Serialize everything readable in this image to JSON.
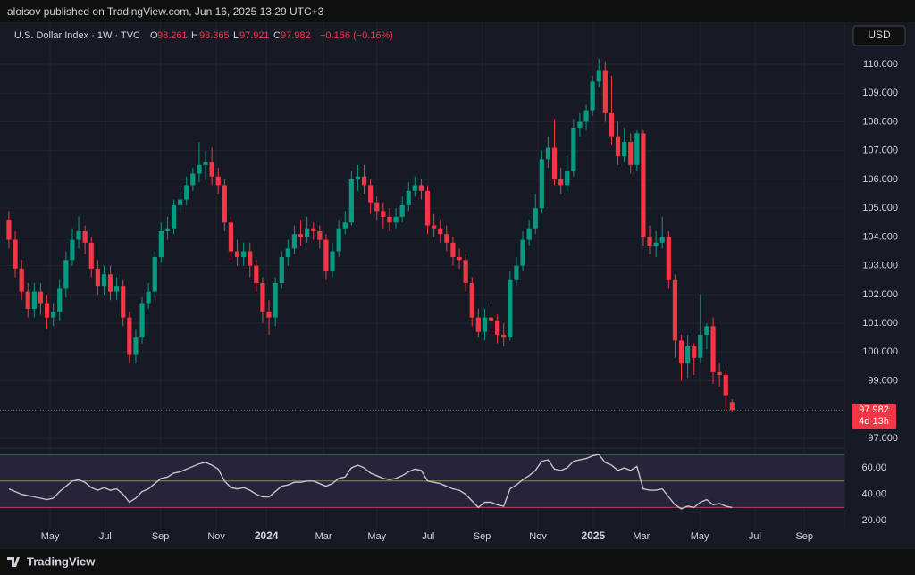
{
  "header": {
    "publisher": "aloisov published on TradingView.com, Jun 16, 2025 13:29 UTC+3",
    "symbol": "U.S. Dollar Index · 1W · TVC",
    "open_label": "O",
    "open": "98.261",
    "high_label": "H",
    "high": "98.365",
    "low_label": "L",
    "low": "97.921",
    "close_label": "C",
    "close": "97.982",
    "change": "−0.156 (−0.16%)",
    "currency": "USD",
    "countdown": "4d 13h"
  },
  "footer": {
    "brand": "TradingView"
  },
  "chart_data": [
    {
      "type": "candlestick",
      "up_color": "#089981",
      "down_color": "#f23645",
      "series": {
        "open": [
          104.6,
          103.9,
          102.9,
          102.1,
          101.5,
          102.1,
          101.7,
          101.2,
          101.4,
          102.2,
          103.2,
          103.9,
          104.2,
          103.8,
          102.9,
          102.3,
          102.7,
          102.1,
          102.3,
          101.2,
          99.9,
          100.5,
          101.7,
          102.1,
          103.3,
          104.2,
          104.3,
          105.1,
          105.3,
          105.8,
          106.2,
          106.5,
          106.6,
          106.1,
          105.8,
          104.5,
          103.5,
          103.3,
          103.5,
          103.0,
          102.4,
          101.4,
          101.2,
          102.4,
          103.3,
          103.6,
          104.1,
          104.0,
          104.3,
          104.2,
          103.9,
          102.8,
          103.5,
          104.3,
          104.5,
          106.0,
          106.1,
          105.8,
          105.2,
          104.9,
          104.7,
          104.5,
          104.7,
          105.1,
          105.6,
          105.8,
          105.6,
          104.4,
          104.3,
          104.1,
          103.8,
          103.3,
          103.2,
          102.4,
          101.2,
          100.7,
          101.2,
          101.1,
          100.6,
          100.5,
          102.5,
          103.0,
          103.9,
          104.3,
          105.0,
          106.7,
          107.1,
          106.0,
          105.8,
          106.3,
          107.8,
          108.0,
          108.4,
          109.4,
          109.8,
          108.3,
          107.5,
          106.8,
          107.3,
          106.5,
          107.6,
          104.0,
          103.7,
          103.8,
          104.0,
          102.5,
          100.4,
          99.6,
          100.2,
          99.8,
          100.6,
          100.9,
          99.3,
          99.2,
          98.261
        ],
        "high": [
          104.9,
          104.2,
          103.2,
          102.4,
          102.4,
          102.4,
          102.0,
          101.7,
          102.5,
          103.5,
          104.3,
          104.7,
          104.4,
          104.0,
          103.2,
          103.0,
          103.0,
          102.6,
          102.5,
          101.4,
          100.8,
          101.9,
          102.4,
          103.5,
          104.5,
          104.7,
          105.3,
          105.7,
          106.1,
          106.4,
          107.3,
          107.0,
          107.1,
          106.4,
          106.0,
          104.7,
          103.9,
          103.8,
          103.8,
          103.2,
          102.6,
          101.8,
          102.6,
          103.5,
          103.9,
          104.4,
          104.6,
          104.7,
          104.5,
          104.4,
          104.1,
          103.8,
          104.6,
          104.9,
          106.3,
          106.5,
          106.5,
          106.0,
          105.4,
          105.2,
          105.0,
          105.0,
          105.4,
          105.9,
          106.1,
          106.0,
          105.8,
          104.8,
          104.6,
          104.4,
          104.0,
          103.6,
          103.4,
          102.6,
          101.5,
          101.5,
          101.6,
          101.3,
          101.0,
          102.8,
          103.3,
          104.2,
          104.6,
          105.5,
          107.0,
          107.5,
          108.1,
          106.4,
          106.8,
          108.1,
          108.3,
          108.6,
          109.6,
          110.2,
          110.1,
          109.6,
          108.0,
          107.8,
          107.6,
          107.7,
          107.7,
          104.4,
          104.2,
          104.7,
          104.2,
          102.7,
          100.6,
          100.6,
          100.3,
          102.0,
          101.0,
          101.2,
          99.6,
          99.4,
          98.365
        ],
        "low": [
          103.6,
          102.6,
          101.8,
          101.2,
          101.2,
          101.3,
          100.8,
          100.9,
          101.1,
          101.9,
          103.0,
          103.6,
          103.4,
          102.6,
          102.0,
          102.0,
          101.8,
          101.8,
          100.9,
          99.6,
          99.6,
          100.3,
          101.5,
          101.9,
          103.1,
          103.9,
          104.1,
          104.8,
          105.1,
          105.6,
          105.9,
          106.0,
          105.8,
          105.5,
          104.2,
          103.2,
          103.0,
          103.0,
          102.6,
          102.1,
          101.0,
          100.6,
          100.9,
          102.2,
          103.0,
          103.4,
          103.7,
          103.8,
          103.9,
          103.6,
          102.5,
          102.6,
          103.3,
          104.1,
          104.4,
          105.6,
          105.5,
          104.8,
          104.6,
          104.3,
          104.2,
          104.3,
          104.5,
          104.9,
          105.4,
          105.3,
          104.1,
          104.0,
          103.8,
          103.5,
          103.0,
          102.9,
          102.1,
          100.9,
          100.5,
          100.4,
          100.8,
          100.3,
          100.2,
          100.4,
          102.3,
          102.8,
          103.7,
          104.1,
          104.8,
          106.4,
          105.8,
          105.5,
          105.6,
          106.1,
          107.5,
          107.7,
          108.2,
          109.2,
          108.0,
          107.2,
          106.5,
          106.6,
          106.2,
          106.3,
          103.7,
          103.4,
          103.3,
          103.6,
          102.2,
          99.8,
          99.0,
          99.1,
          99.2,
          99.6,
          100.1,
          98.9,
          98.8,
          98.0,
          97.921
        ],
        "close": [
          103.9,
          102.9,
          102.1,
          101.5,
          102.1,
          101.7,
          101.2,
          101.4,
          102.2,
          103.2,
          103.9,
          104.2,
          103.8,
          102.9,
          102.3,
          102.7,
          102.1,
          102.3,
          101.2,
          99.9,
          100.5,
          101.7,
          102.1,
          103.3,
          104.2,
          104.3,
          105.1,
          105.3,
          105.8,
          106.2,
          106.5,
          106.6,
          106.1,
          105.8,
          104.5,
          103.5,
          103.3,
          103.5,
          103.0,
          102.4,
          101.4,
          101.2,
          102.4,
          103.3,
          103.6,
          104.1,
          104.0,
          104.3,
          104.2,
          103.9,
          102.8,
          103.5,
          104.3,
          104.5,
          106.0,
          106.1,
          105.8,
          105.2,
          104.9,
          104.7,
          104.5,
          104.7,
          105.1,
          105.6,
          105.8,
          105.6,
          104.4,
          104.3,
          104.1,
          103.8,
          103.3,
          103.2,
          102.4,
          101.2,
          100.7,
          101.2,
          101.1,
          100.6,
          100.5,
          102.5,
          103.0,
          103.9,
          104.3,
          105.0,
          106.7,
          107.1,
          106.0,
          105.8,
          106.3,
          107.8,
          108.0,
          108.4,
          109.4,
          109.8,
          108.3,
          107.5,
          106.8,
          107.3,
          106.5,
          107.6,
          104.0,
          103.7,
          103.8,
          104.0,
          102.5,
          100.4,
          99.6,
          100.2,
          99.8,
          100.6,
          100.9,
          99.3,
          99.2,
          98.5,
          97.982
        ]
      },
      "xlim": [
        -1.4,
        131.7
      ],
      "ylim": [
        96.72,
        111.46
      ],
      "yticks": [
        {
          "value": 97,
          "label": "97.000"
        },
        {
          "value": 99,
          "label": "99.000"
        },
        {
          "value": 100,
          "label": "100.000"
        },
        {
          "value": 101,
          "label": "101.000"
        },
        {
          "value": 102,
          "label": "102.000"
        },
        {
          "value": 103,
          "label": "103.000"
        },
        {
          "value": 104,
          "label": "104.000"
        },
        {
          "value": 105,
          "label": "105.000"
        },
        {
          "value": 106,
          "label": "106.000"
        },
        {
          "value": 107,
          "label": "107.000"
        },
        {
          "value": 108,
          "label": "108.000"
        },
        {
          "value": 109,
          "label": "109.000"
        },
        {
          "value": 110,
          "label": "110.000"
        }
      ],
      "xticks": [
        {
          "value": 6.5,
          "label": "May"
        },
        {
          "value": 15.2,
          "label": "Jul"
        },
        {
          "value": 23.9,
          "label": "Sep"
        },
        {
          "value": 32.7,
          "label": "Nov"
        },
        {
          "value": 40.6,
          "label": "2024"
        },
        {
          "value": 49.6,
          "label": "Mar"
        },
        {
          "value": 58.0,
          "label": "May"
        },
        {
          "value": 66.1,
          "label": "Jul"
        },
        {
          "value": 74.6,
          "label": "Sep"
        },
        {
          "value": 83.4,
          "label": "Nov"
        },
        {
          "value": 92.1,
          "label": "2025"
        },
        {
          "value": 99.7,
          "label": "Mar"
        },
        {
          "value": 108.9,
          "label": "May"
        },
        {
          "value": 117.6,
          "label": "Jul"
        },
        {
          "value": 125.4,
          "label": "Sep"
        }
      ],
      "grid": true
    },
    {
      "type": "line",
      "color": "#c4c4c8",
      "values": [
        44,
        42,
        40,
        39,
        38,
        37,
        36,
        37,
        42,
        46,
        50,
        51,
        49,
        45,
        43,
        45,
        43,
        44,
        40,
        34,
        37,
        42,
        44,
        48,
        52,
        53,
        56,
        57,
        59,
        61,
        63,
        64,
        62,
        59,
        50,
        45,
        44,
        45,
        43,
        40,
        38,
        38,
        42,
        46,
        47,
        49,
        49,
        50,
        50,
        48,
        46,
        48,
        52,
        53,
        60,
        62,
        60,
        56,
        54,
        52,
        51,
        52,
        54,
        57,
        59,
        58,
        50,
        49,
        48,
        46,
        44,
        43,
        40,
        35,
        30,
        34,
        34,
        32,
        31,
        44,
        47,
        51,
        54,
        58,
        65,
        66,
        59,
        58,
        60,
        65,
        66,
        67,
        69,
        70,
        64,
        62,
        58,
        60,
        58,
        61,
        44,
        43,
        43,
        44,
        38,
        32,
        29,
        31,
        30,
        34,
        36,
        32,
        33,
        31,
        30
      ],
      "xlim": [
        -1.4,
        131.7
      ],
      "ylim": [
        14.05,
        72.8
      ],
      "levels": [
        {
          "value": 70,
          "color": "#4f7a5c"
        },
        {
          "value": 50,
          "color": "#8f8a4a"
        },
        {
          "value": 30,
          "color": "#b0405a"
        }
      ],
      "band_color": "#2a2540",
      "yticks": [
        {
          "value": 20,
          "label": "20.00"
        },
        {
          "value": 40,
          "label": "40.00"
        },
        {
          "value": 60,
          "label": "60.00"
        }
      ]
    }
  ]
}
